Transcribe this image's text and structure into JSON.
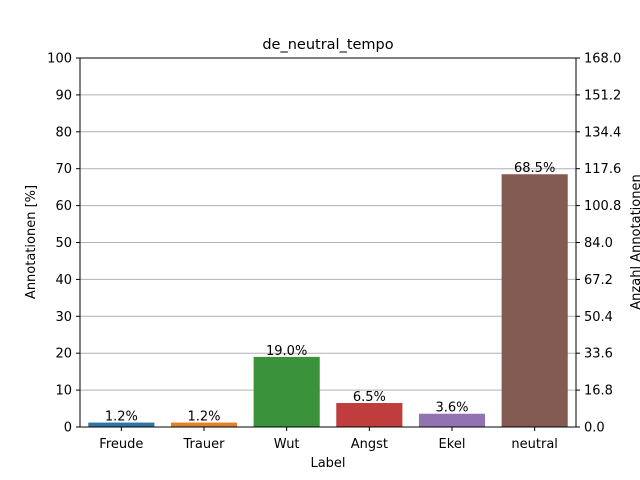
{
  "chart_data": {
    "type": "bar",
    "title": "de_neutral_tempo",
    "xlabel": "Label",
    "ylabel": "Annotationen [%]",
    "ylabel_right": "Anzahl Annotationen",
    "categories": [
      "Freude",
      "Trauer",
      "Wut",
      "Angst",
      "Ekel",
      "neutral"
    ],
    "values": [
      1.2,
      1.2,
      19.0,
      6.5,
      3.6,
      68.5
    ],
    "data_labels": [
      "1.2%",
      "1.2%",
      "19.0%",
      "6.5%",
      "3.6%",
      "68.5%"
    ],
    "colors": [
      "#3274a1",
      "#e1812c",
      "#3a923a",
      "#c03d3e",
      "#9372b2",
      "#845b53"
    ],
    "ylim": [
      0,
      100
    ],
    "yticks": [
      "0",
      "10",
      "20",
      "30",
      "40",
      "50",
      "60",
      "70",
      "80",
      "90",
      "100"
    ],
    "ylim_right": [
      0,
      168
    ],
    "yticks_right": [
      "0.0",
      "16.8",
      "33.6",
      "50.4",
      "67.2",
      "84.0",
      "100.8",
      "117.6",
      "134.4",
      "151.2",
      "168.0"
    ],
    "grid": true
  }
}
